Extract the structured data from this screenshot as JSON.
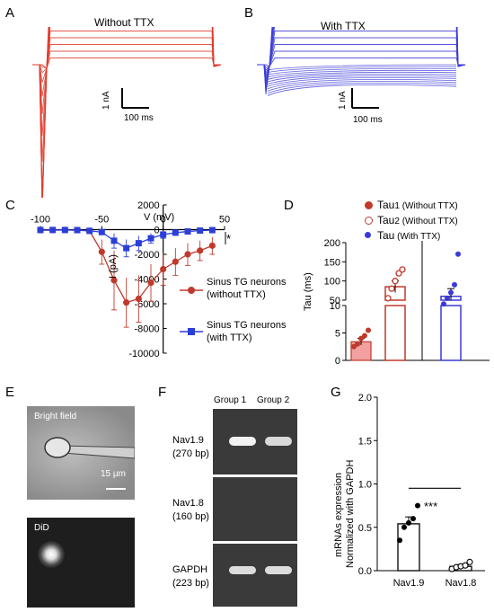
{
  "panels": {
    "A": {
      "letter": "A",
      "title": "Without TTX",
      "scale_y": "1 nA",
      "scale_x": "100 ms",
      "color": "#e03a2a"
    },
    "B": {
      "letter": "B",
      "title": "With TTX",
      "scale_y": "1 nA",
      "scale_x": "100 ms",
      "color": "#3a3ad8"
    },
    "C": {
      "letter": "C",
      "xlabel": "V (mV)",
      "ylabel": "I (pA)",
      "significance": "*",
      "legend": [
        {
          "label_line1": "Sinus TG neurons",
          "label_line2": "(without TTX)",
          "color": "#c0392b"
        },
        {
          "label_line1": "Sinus TG neurons",
          "label_line2": "(with TTX)",
          "color": "#2b3fd8"
        }
      ]
    },
    "D": {
      "letter": "D",
      "ylabel": "Tau (ms)",
      "legend": [
        {
          "main": "Tau",
          "sub": "1",
          "rest": " (Without TTX)",
          "color": "#c0392b"
        },
        {
          "main": "Tau",
          "sub": "2",
          "rest": " (Without TTX)",
          "color": "#c0392b"
        },
        {
          "main": "Tau",
          "sub": "",
          "rest": " (With TTX)",
          "color": "#3a3ad8"
        }
      ]
    },
    "E": {
      "letter": "E",
      "top_label": "Bright field",
      "scale": "15 μm",
      "bottom_label": "DiD"
    },
    "F": {
      "letter": "F",
      "group1": "Group 1",
      "group2": "Group 2",
      "rows": [
        {
          "gene": "Nav1.9",
          "size": "(270 bp)"
        },
        {
          "gene": "Nav1.8",
          "size": "(160 bp)"
        },
        {
          "gene": "GAPDH",
          "size": "(223 bp)"
        }
      ]
    },
    "G": {
      "letter": "G",
      "ylabel1": "mRNAs expression",
      "ylabel2": "Normalized with GAPDH",
      "significance": "***"
    }
  },
  "chart_data": [
    {
      "type": "line",
      "panel": "C",
      "xlabel": "V (mV)",
      "ylabel": "I (pA)",
      "x": [
        -100,
        -90,
        -80,
        -70,
        -60,
        -50,
        -40,
        -30,
        -20,
        -10,
        0,
        10,
        20,
        30,
        40
      ],
      "xlim": [
        -100,
        50
      ],
      "ylim": [
        -10000,
        2000
      ],
      "xticks": [
        -100,
        -50,
        0,
        50
      ],
      "yticks": [
        2000,
        0,
        -2000,
        -4000,
        -6000,
        -8000,
        -10000
      ],
      "series": [
        {
          "name": "Sinus TG neurons (without TTX)",
          "color": "#c0392b",
          "values": [
            -50,
            -40,
            -30,
            -40,
            -100,
            -1800,
            -4100,
            -5900,
            -5600,
            -4300,
            -3200,
            -2600,
            -2000,
            -1700,
            -1300
          ],
          "err": [
            50,
            50,
            50,
            60,
            200,
            1000,
            2400,
            2000,
            1900,
            1500,
            1300,
            1100,
            900,
            800,
            700
          ]
        },
        {
          "name": "Sinus TG neurons (with TTX)",
          "color": "#2b3fd8",
          "values": [
            -30,
            -30,
            -30,
            -40,
            -100,
            -200,
            -900,
            -1500,
            -1100,
            -700,
            -400,
            -250,
            -150,
            -80,
            -40
          ],
          "err": [
            30,
            30,
            30,
            40,
            100,
            200,
            600,
            700,
            600,
            400,
            300,
            200,
            150,
            100,
            60
          ]
        }
      ]
    },
    {
      "type": "bar",
      "panel": "D",
      "ylabel": "Tau (ms)",
      "yticks_lower": [
        0,
        5,
        10
      ],
      "yticks_upper": [
        50,
        100,
        150,
        200
      ],
      "categories": [
        "Tau1 (Without TTX)",
        "Tau2 (Without TTX)",
        "Tau (With TTX)"
      ],
      "values": [
        3.4,
        85,
        60
      ],
      "err": [
        0.6,
        15,
        20
      ],
      "points": [
        [
          2.5,
          3.0,
          4.0,
          4.5,
          5.5
        ],
        [
          55,
          80,
          100,
          120,
          130
        ],
        [
          40,
          55,
          70,
          90,
          170
        ]
      ],
      "colors": [
        "#c0392b",
        "#c0392b",
        "#3a3ad8"
      ]
    },
    {
      "type": "bar",
      "panel": "G",
      "ylabel": "mRNAs expression Normalized with GAPDH",
      "categories": [
        "Nav1.9",
        "Nav1.8"
      ],
      "values": [
        0.54,
        0.05
      ],
      "err": [
        0.08,
        0.02
      ],
      "points": [
        [
          0.35,
          0.5,
          0.55,
          0.6,
          0.75
        ],
        [
          0.02,
          0.04,
          0.05,
          0.06,
          0.1
        ]
      ],
      "ylim": [
        0,
        2.0
      ],
      "yticks": [
        0.0,
        0.5,
        1.0,
        1.5,
        2.0
      ]
    }
  ]
}
